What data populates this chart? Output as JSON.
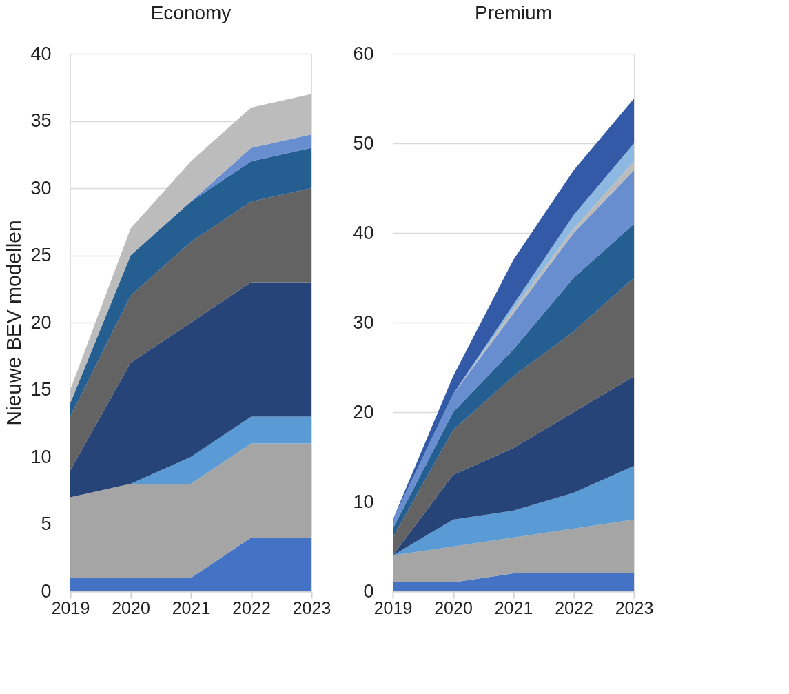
{
  "chart_data": [
    {
      "type": "area",
      "stacked": true,
      "title": "Economy",
      "ylabel": "Nieuwe BEV modellen",
      "x": [
        2019,
        2020,
        2021,
        2022,
        2023
      ],
      "xlim": [
        2019,
        2023
      ],
      "xticks": [
        2019,
        2020,
        2021,
        2022,
        2023
      ],
      "ylim": [
        0,
        40
      ],
      "yticks": [
        0,
        5,
        10,
        15,
        20,
        25,
        30,
        35,
        40
      ],
      "grid": "y",
      "legend": false,
      "series": [
        {
          "color": "#4472c4",
          "values": [
            1,
            1,
            1,
            4,
            4
          ]
        },
        {
          "color": "#a5a5a5",
          "values": [
            6,
            7,
            7,
            7,
            7
          ]
        },
        {
          "color": "#5b9bd5",
          "values": [
            0,
            0,
            2,
            2,
            2
          ]
        },
        {
          "color": "#264478",
          "values": [
            2,
            9,
            10,
            10,
            10
          ]
        },
        {
          "color": "#636363",
          "values": [
            4,
            5,
            6,
            6,
            7
          ]
        },
        {
          "color": "#255e91",
          "values": [
            1,
            3,
            3,
            3,
            3
          ]
        },
        {
          "color": "#698ed0",
          "values": [
            0,
            0,
            0,
            1,
            1
          ]
        },
        {
          "color": "#bcbcbc",
          "values": [
            1,
            2,
            3,
            3,
            3
          ]
        }
      ]
    },
    {
      "type": "area",
      "stacked": true,
      "title": "Premium",
      "x": [
        2019,
        2020,
        2021,
        2022,
        2023
      ],
      "xlim": [
        2019,
        2023
      ],
      "xticks": [
        2019,
        2020,
        2021,
        2022,
        2023
      ],
      "ylim": [
        0,
        60
      ],
      "yticks": [
        0,
        10,
        20,
        30,
        40,
        50,
        60
      ],
      "grid": "y",
      "legend": false,
      "series": [
        {
          "color": "#4472c4",
          "values": [
            1,
            1,
            2,
            2,
            2
          ]
        },
        {
          "color": "#a5a5a5",
          "values": [
            3,
            4,
            4,
            5,
            6
          ]
        },
        {
          "color": "#5b9bd5",
          "values": [
            0,
            3,
            3,
            4,
            6
          ]
        },
        {
          "color": "#264478",
          "values": [
            0,
            5,
            7,
            9,
            10
          ]
        },
        {
          "color": "#636363",
          "values": [
            2,
            5,
            8,
            9,
            11
          ]
        },
        {
          "color": "#255e91",
          "values": [
            1,
            2,
            3,
            6,
            6
          ]
        },
        {
          "color": "#698ed0",
          "values": [
            1,
            2,
            4,
            5,
            6
          ]
        },
        {
          "color": "#bcbcbc",
          "values": [
            0,
            0,
            0.5,
            0.5,
            1
          ]
        },
        {
          "color": "#8cb8e2",
          "values": [
            0,
            0,
            0.5,
            1.5,
            2
          ]
        },
        {
          "color": "#335aa6",
          "values": [
            0,
            2,
            5,
            5,
            5
          ]
        }
      ]
    }
  ]
}
